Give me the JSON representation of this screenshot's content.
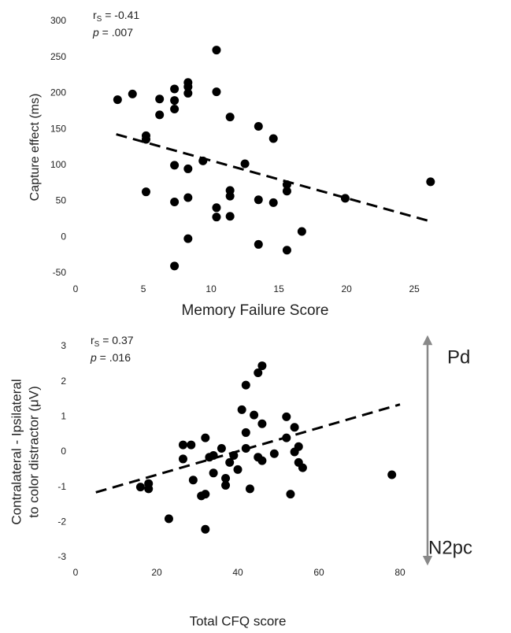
{
  "chart_data": [
    {
      "type": "scatter",
      "xlabel": "Memory Failure Score",
      "ylabel": [
        "Capture effect (ms)"
      ],
      "stat_r": {
        "symbol": "r",
        "subscript": "S",
        "text": " = -0.41"
      },
      "stat_p": {
        "symbol": "p",
        "text": " = .007"
      },
      "color": "#000000",
      "x": [
        3.1,
        4.2,
        5.2,
        5.2,
        5.2,
        6.2,
        6.2,
        7.3,
        7.3,
        7.3,
        7.3,
        7.3,
        7.3,
        8.3,
        8.3,
        8.3,
        8.3,
        8.3,
        8.3,
        9.4,
        10.4,
        10.4,
        10.4,
        10.4,
        11.4,
        11.4,
        11.4,
        11.4,
        12.5,
        13.5,
        13.5,
        13.5,
        14.6,
        14.6,
        15.6,
        15.6,
        15.6,
        16.7,
        19.9,
        26.2
      ],
      "values": [
        191,
        199,
        141,
        136,
        63,
        192,
        170,
        206,
        190,
        178,
        100,
        49,
        -40,
        215,
        209,
        200,
        95,
        55,
        -2,
        106,
        260,
        202,
        41,
        28,
        167,
        65,
        57,
        29,
        102,
        154,
        52,
        -10,
        137,
        48,
        73,
        64,
        -18,
        8,
        54,
        77
      ],
      "trendline": {
        "x": [
          3,
          26
        ],
        "y": [
          143,
          23
        ]
      },
      "xlim": [
        0,
        26.5
      ],
      "ylim": [
        -50,
        300
      ],
      "xticks": [
        0,
        5,
        10,
        15,
        20,
        25
      ],
      "yticks": [
        -50,
        0,
        50,
        100,
        150,
        200,
        250,
        300
      ]
    },
    {
      "type": "scatter",
      "xlabel": "Total CFQ score",
      "ylabel": [
        "Contralateral - Ipsilateral",
        "to color distractor (μV)"
      ],
      "stat_r": {
        "symbol": "r",
        "subscript": "S",
        "text": " = 0.37"
      },
      "stat_p": {
        "symbol": "p",
        "text": " = .016"
      },
      "arrow_labels": [
        "Pd",
        "N2pc"
      ],
      "color": "#000000",
      "x": [
        16,
        18,
        18,
        23,
        26.5,
        26.5,
        28.5,
        29,
        31,
        32,
        32,
        32,
        33,
        34,
        34,
        36,
        37,
        37,
        38,
        39,
        40,
        41,
        42,
        42,
        42,
        43,
        44,
        45,
        45,
        46,
        46,
        46,
        49,
        52,
        52,
        53,
        54,
        54,
        55,
        55,
        56,
        78
      ],
      "values": [
        -1.0,
        -0.9,
        -1.05,
        -1.9,
        0.2,
        -0.2,
        0.2,
        -0.8,
        -1.25,
        0.4,
        -1.2,
        -2.2,
        -0.15,
        -0.1,
        -0.6,
        0.1,
        -0.95,
        -0.75,
        -0.3,
        -0.1,
        -0.5,
        1.2,
        1.9,
        0.55,
        0.1,
        -1.05,
        1.05,
        2.25,
        -0.15,
        2.45,
        0.8,
        -0.25,
        -0.05,
        1.0,
        0.4,
        -1.2,
        0.7,
        0.0,
        0.15,
        -0.3,
        -0.45,
        -0.65
      ],
      "trendline": {
        "x": [
          5,
          80
        ],
        "y": [
          -1.15,
          1.35
        ]
      },
      "xlim": [
        0,
        80
      ],
      "ylim": [
        -3,
        3
      ],
      "xticks": [
        0,
        20,
        40,
        60,
        80
      ],
      "yticks": [
        -3,
        -2,
        -1,
        0,
        1,
        2,
        3
      ]
    }
  ]
}
